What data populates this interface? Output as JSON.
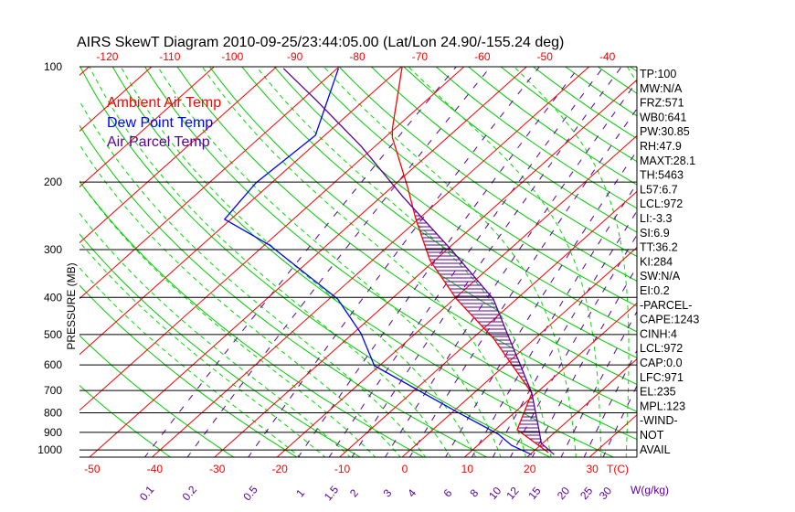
{
  "chart_data": {
    "type": "line",
    "subtype": "skew-t log-p",
    "title": "AIRS SkewT Diagram 2010-09-25/23:44:05.00 (Lat/Lon 24.90/-155.24 deg)",
    "ylabel": "PRESSURE (MB)",
    "xlabel_temp": "T(C)",
    "xlabel_mixing": "W(g/kg)",
    "pressure_ticks": [
      100,
      200,
      300,
      400,
      500,
      600,
      700,
      800,
      900,
      1000
    ],
    "pressure_tick_labels": [
      "100",
      "200",
      "300",
      "400",
      "500",
      "600",
      "700",
      "800",
      "900",
      "1000"
    ],
    "bottom_temp_ticks": [
      -50,
      -40,
      -30,
      -20,
      -10,
      0,
      10,
      20,
      30
    ],
    "bottom_temp_labels": [
      "-50",
      "-40",
      "-30",
      "-20",
      "-10",
      "0",
      "10",
      "20",
      "30"
    ],
    "top_temp_ticks": [
      -120,
      -110,
      -100,
      -90,
      -80,
      -70,
      -60,
      -50,
      -40
    ],
    "top_temp_labels": [
      "-120",
      "-110",
      "-100",
      "-90",
      "-80",
      "-70",
      "-60",
      "-50",
      "-40"
    ],
    "mixing_ratio_ticks": [
      0.1,
      0.2,
      0.5,
      1,
      1.5,
      2,
      3,
      4,
      6,
      8,
      10,
      12,
      15,
      20,
      25,
      30
    ],
    "mixing_ratio_labels": [
      "0.1",
      "0.2",
      "0.5",
      "1",
      "1.5",
      "2",
      "3",
      "4",
      "6",
      "8",
      "10",
      "12",
      "15",
      "20",
      "25",
      "30"
    ],
    "ylim": [
      1050,
      100
    ],
    "legend": [
      {
        "label": "Ambient Air Temp",
        "color": "#ff0000"
      },
      {
        "label": "Dew Point Temp",
        "color": "#0000ff"
      },
      {
        "label": "Air Parcel Temp",
        "color": "#5a0096"
      }
    ],
    "series": [
      {
        "name": "Ambient Air Temp",
        "color": "#ff0000",
        "p": [
          1016,
          886,
          711,
          511,
          404,
          320,
          250,
          206,
          153,
          145,
          100
        ],
        "T": [
          22.6,
          13.5,
          9.3,
          -6.7,
          -19.6,
          -30.8,
          -40.4,
          -47.5,
          -58.8,
          -60.4,
          -69.9
        ]
      },
      {
        "name": "Dew Point Temp",
        "color": "#0000ff",
        "p": [
          1029,
          973,
          910,
          795,
          603,
          497,
          404,
          292,
          250,
          201,
          151,
          101
        ],
        "T": [
          20.3,
          15.4,
          11.3,
          0.6,
          -20.8,
          -28.7,
          -38.6,
          -59.2,
          -71.0,
          -72.5,
          -71.5,
          -79.8
        ]
      },
      {
        "name": "Air Parcel Temp",
        "color": "#5a0096",
        "p": [
          1029,
          961,
          886,
          711,
          603,
          497,
          404,
          303,
          218,
          161,
          122,
          101
        ],
        "T": [
          23.9,
          19.8,
          17.0,
          9.3,
          2.6,
          -5.3,
          -13.7,
          -28.8,
          -46.6,
          -62.3,
          -77.8,
          -88.6
        ]
      }
    ],
    "colors": {
      "isotherm": "#ff0000",
      "dry_adiabat": "#00cc00",
      "moist_adiabat": "#00dd00",
      "mixing_ratio": "#5a0096",
      "isobar": "#000000",
      "cape_hatch": "#5a0096"
    }
  },
  "indices": [
    "TP:100",
    "MW:N/A",
    "FRZ:571",
    "WB0:641",
    "PW:30.85",
    "RH:47.9",
    "MAXT:28.1",
    "TH:5463",
    "L57:6.7",
    "LCL:972",
    "LI:-3.3",
    "SI:6.9",
    "TT:36.2",
    "KI:284",
    "SW:N/A",
    "EI:0.2",
    "-PARCEL-",
    "CAPE:1243",
    "CINH:4",
    "LCL:972",
    "CAP:0.0",
    "LFC:971",
    "EL:235",
    "MPL:123",
    "-WIND-",
    "NOT",
    "AVAIL"
  ]
}
